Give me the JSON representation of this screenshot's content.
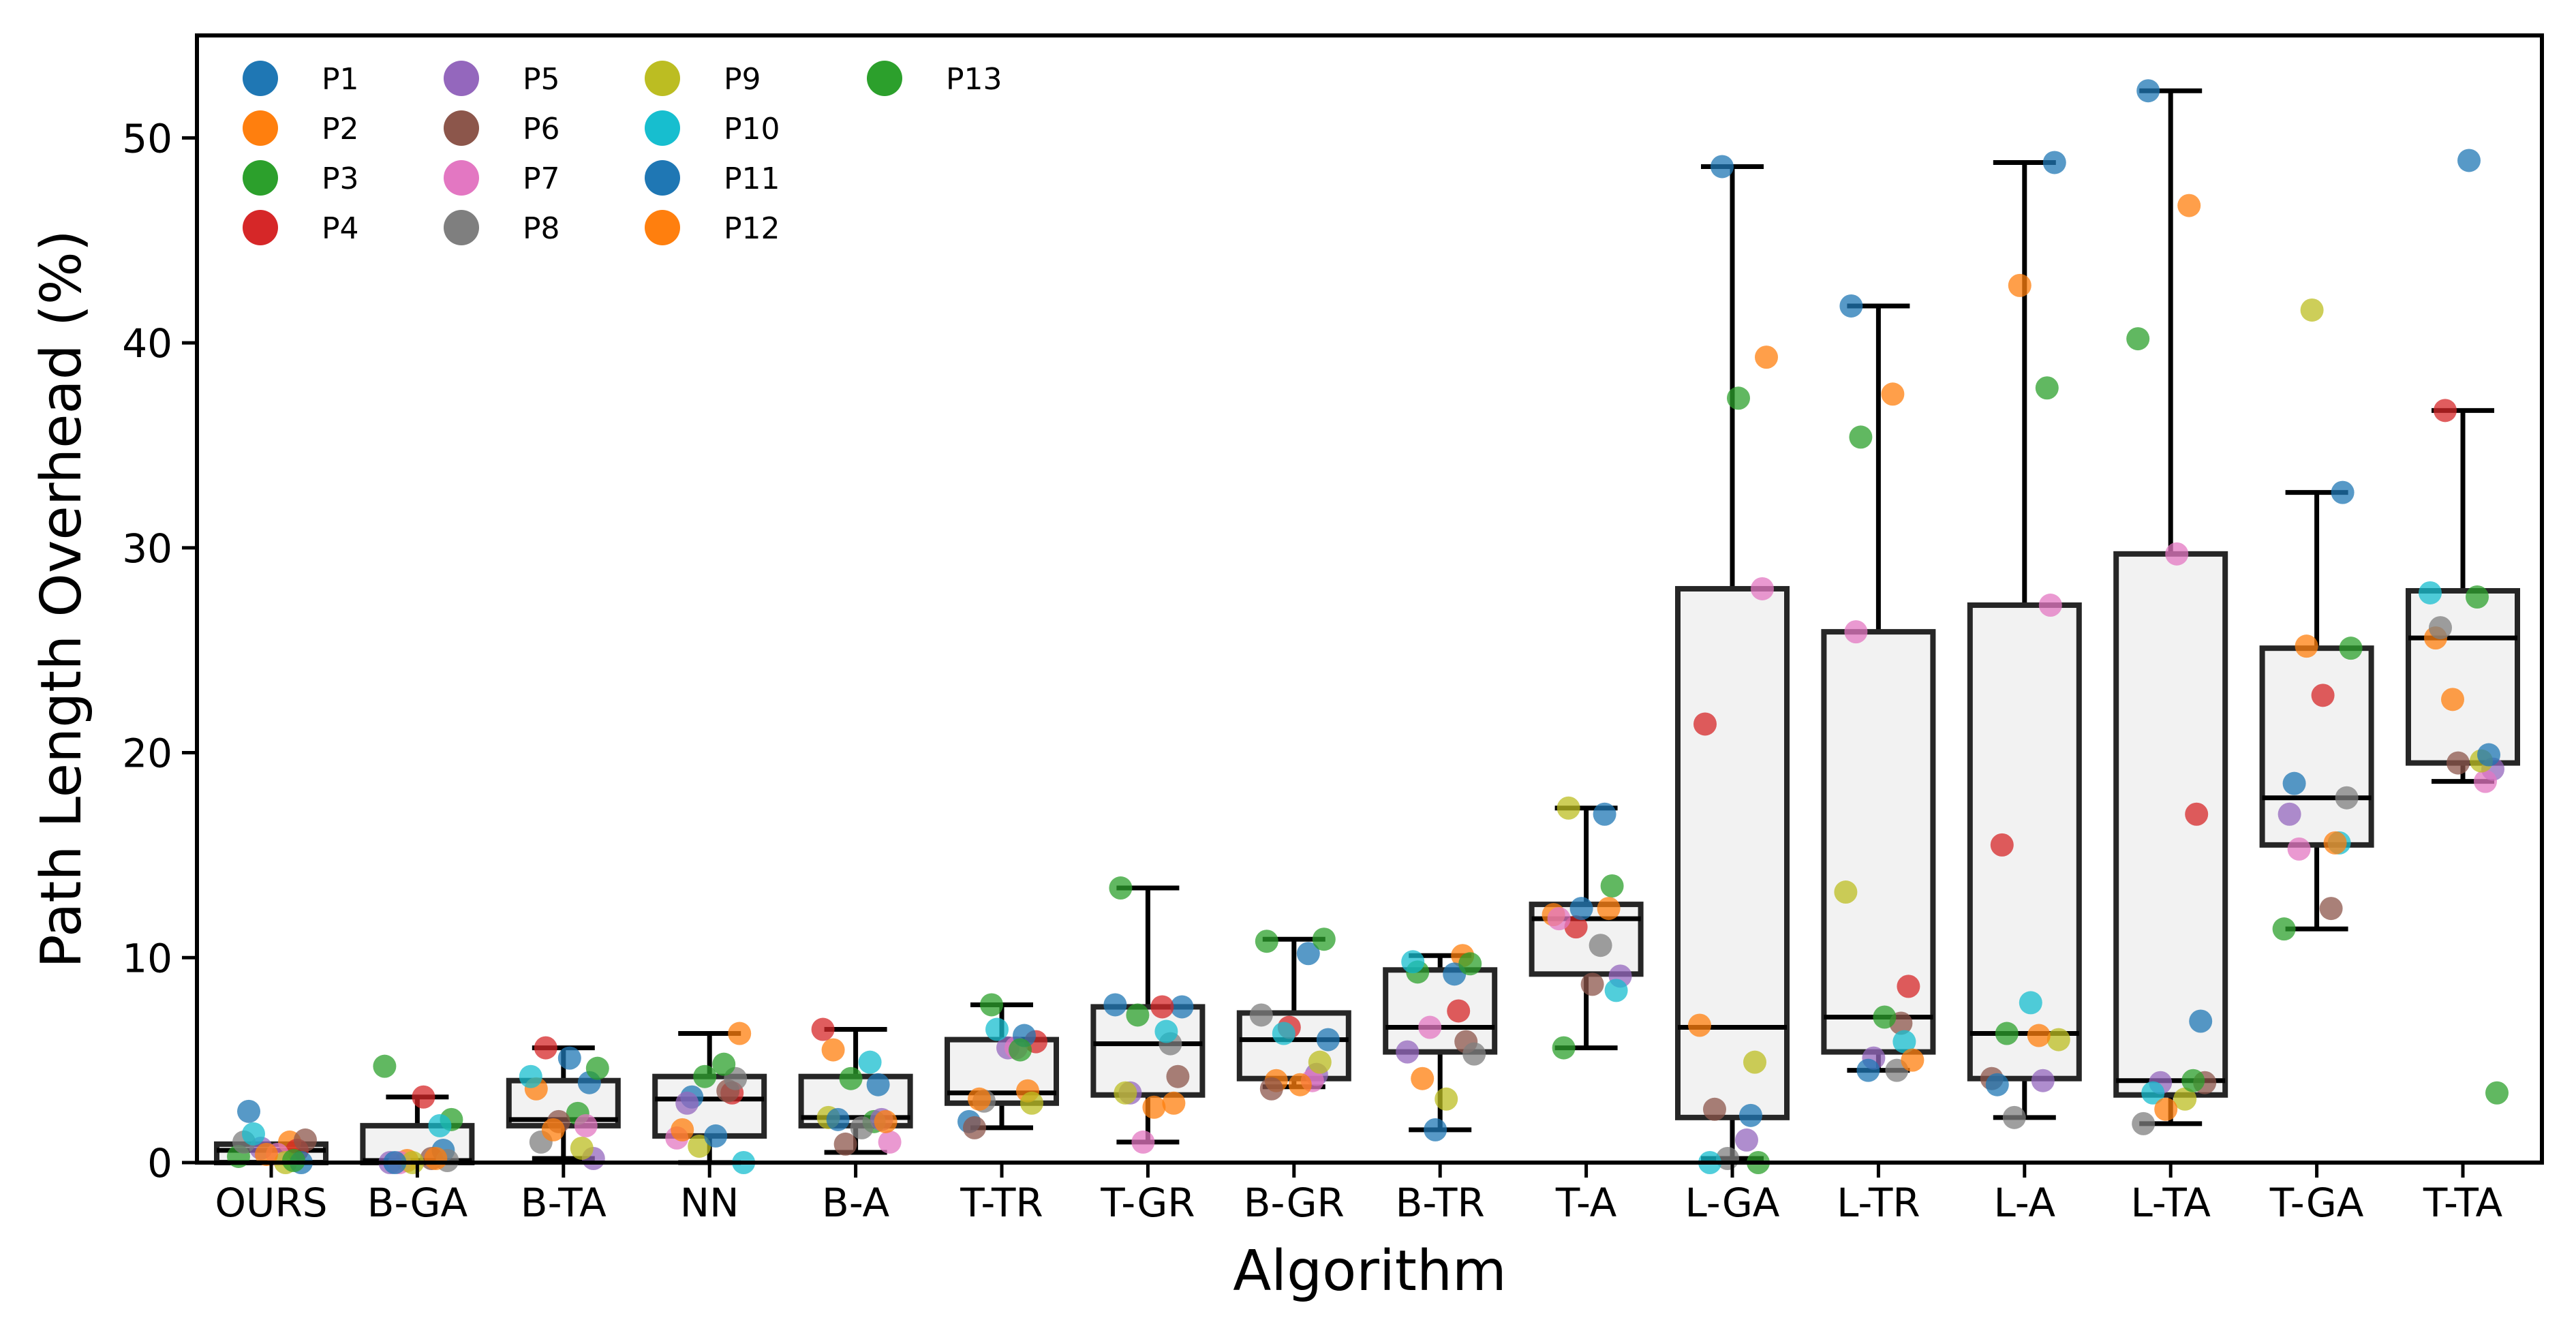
{
  "chart_data": {
    "type": "box",
    "xlabel": "Algorithm",
    "ylabel": "Path Length Overhead (%)",
    "ylim": [
      0,
      55
    ],
    "yticks": [
      0,
      10,
      20,
      30,
      40,
      50
    ],
    "ytick_labels": [
      "0",
      "10",
      "20",
      "30",
      "40",
      "50"
    ],
    "grid": false,
    "legend_placement": "top-left",
    "legend": [
      {
        "name": "P1",
        "color": "#1f77b4"
      },
      {
        "name": "P2",
        "color": "#ff7f0e"
      },
      {
        "name": "P3",
        "color": "#2ca02c"
      },
      {
        "name": "P4",
        "color": "#d62728"
      },
      {
        "name": "P5",
        "color": "#9467bd"
      },
      {
        "name": "P6",
        "color": "#8c564b"
      },
      {
        "name": "P7",
        "color": "#e377c2"
      },
      {
        "name": "P8",
        "color": "#7f7f7f"
      },
      {
        "name": "P9",
        "color": "#bcbd22"
      },
      {
        "name": "P10",
        "color": "#17becf"
      },
      {
        "name": "P11",
        "color": "#1f77b4"
      },
      {
        "name": "P12",
        "color": "#ff7f0e"
      },
      {
        "name": "P13",
        "color": "#2ca02c"
      }
    ],
    "categories": [
      "OURS",
      "B-GA",
      "B-TA",
      "NN",
      "B-A",
      "T-TR",
      "T-GR",
      "B-GR",
      "B-TR",
      "T-A",
      "L-GA",
      "L-TR",
      "L-A",
      "L-TA",
      "T-GA",
      "T-TA"
    ],
    "boxes": [
      {
        "q1": 0.0,
        "median": 0.6,
        "q3": 0.9,
        "whisker_low": 0.0,
        "whisker_high": 0.9
      },
      {
        "q1": 0.0,
        "median": 0.1,
        "q3": 1.8,
        "whisker_low": 0.0,
        "whisker_high": 3.2
      },
      {
        "q1": 1.8,
        "median": 2.1,
        "q3": 4.0,
        "whisker_low": 0.2,
        "whisker_high": 5.6
      },
      {
        "q1": 1.3,
        "median": 3.1,
        "q3": 4.2,
        "whisker_low": 0.0,
        "whisker_high": 6.3
      },
      {
        "q1": 1.8,
        "median": 2.2,
        "q3": 4.2,
        "whisker_low": 0.5,
        "whisker_high": 6.5
      },
      {
        "q1": 2.9,
        "median": 3.4,
        "q3": 6.0,
        "whisker_low": 1.7,
        "whisker_high": 7.7
      },
      {
        "q1": 3.3,
        "median": 5.8,
        "q3": 7.6,
        "whisker_low": 1.0,
        "whisker_high": 13.4
      },
      {
        "q1": 4.1,
        "median": 6.0,
        "q3": 7.3,
        "whisker_low": 3.7,
        "whisker_high": 10.9
      },
      {
        "q1": 5.4,
        "median": 6.6,
        "q3": 9.4,
        "whisker_low": 1.6,
        "whisker_high": 10.1
      },
      {
        "q1": 9.2,
        "median": 11.9,
        "q3": 12.6,
        "whisker_low": 5.6,
        "whisker_high": 17.3
      },
      {
        "q1": 2.2,
        "median": 6.6,
        "q3": 28.0,
        "whisker_low": 0.2,
        "whisker_high": 48.6
      },
      {
        "q1": 5.4,
        "median": 7.1,
        "q3": 25.9,
        "whisker_low": 4.5,
        "whisker_high": 41.8
      },
      {
        "q1": 4.1,
        "median": 6.3,
        "q3": 27.2,
        "whisker_low": 2.2,
        "whisker_high": 48.8
      },
      {
        "q1": 3.3,
        "median": 4.0,
        "q3": 29.7,
        "whisker_low": 1.9,
        "whisker_high": 52.3
      },
      {
        "q1": 15.5,
        "median": 17.8,
        "q3": 25.1,
        "whisker_low": 11.4,
        "whisker_high": 32.7
      },
      {
        "q1": 19.5,
        "median": 25.6,
        "q3": 27.9,
        "whisker_low": 18.6,
        "whisker_high": 36.7
      }
    ],
    "series": [
      {
        "name": "P1",
        "values": [
          2.5,
          0.6,
          5.1,
          3.2,
          3.8,
          2.0,
          7.6,
          10.2,
          1.6,
          17.0,
          48.6,
          41.8,
          48.8,
          52.3,
          32.7,
          48.9
        ]
      },
      {
        "name": "P2",
        "values": [
          1.0,
          0.1,
          3.6,
          6.3,
          5.5,
          3.5,
          2.7,
          4.0,
          10.1,
          12.1,
          39.3,
          37.5,
          42.8,
          46.7,
          25.2,
          25.6
        ]
      },
      {
        "name": "P3",
        "values": [
          0.3,
          2.1,
          2.4,
          4.2,
          2.0,
          7.7,
          13.4,
          10.9,
          9.3,
          13.5,
          37.3,
          35.4,
          37.8,
          40.2,
          25.1,
          27.6
        ]
      },
      {
        "name": "P4",
        "values": [
          0.6,
          3.2,
          5.6,
          3.4,
          6.5,
          5.9,
          7.6,
          6.6,
          7.4,
          11.5,
          21.4,
          8.6,
          15.5,
          17.0,
          22.8,
          36.7
        ]
      },
      {
        "name": "P5",
        "values": [
          0.7,
          0.0,
          0.2,
          2.9,
          2.1,
          5.6,
          3.4,
          4.3,
          5.4,
          9.1,
          1.1,
          5.1,
          4.0,
          3.9,
          17.0,
          19.2
        ]
      },
      {
        "name": "P6",
        "values": [
          1.1,
          0.2,
          2.0,
          3.5,
          0.9,
          1.7,
          4.2,
          3.6,
          5.9,
          8.7,
          2.6,
          6.8,
          4.1,
          3.9,
          12.4,
          19.5
        ]
      },
      {
        "name": "P7",
        "values": [
          0.4,
          0.0,
          1.8,
          1.2,
          1.0,
          5.6,
          1.0,
          4.0,
          6.6,
          11.9,
          28.0,
          25.9,
          27.2,
          29.7,
          15.3,
          18.6
        ]
      },
      {
        "name": "P8",
        "values": [
          1.0,
          0.1,
          1.0,
          4.1,
          1.7,
          3.0,
          5.8,
          7.2,
          5.3,
          10.6,
          0.2,
          4.5,
          2.2,
          1.9,
          17.8,
          26.1
        ]
      },
      {
        "name": "P9",
        "values": [
          0.0,
          0.0,
          0.7,
          0.8,
          2.2,
          2.9,
          3.4,
          4.9,
          3.1,
          17.3,
          4.9,
          13.2,
          6.0,
          3.1,
          41.6,
          19.6
        ]
      },
      {
        "name": "P10",
        "values": [
          1.4,
          1.8,
          4.2,
          0.0,
          4.9,
          6.5,
          6.4,
          6.3,
          9.8,
          8.4,
          0.0,
          5.9,
          7.8,
          3.4,
          15.6,
          27.8
        ]
      },
      {
        "name": "P11",
        "values": [
          0.0,
          0.0,
          3.9,
          1.3,
          2.1,
          6.2,
          7.7,
          6.0,
          9.2,
          12.4,
          2.3,
          4.5,
          3.8,
          6.9,
          18.5,
          19.9
        ]
      },
      {
        "name": "P12",
        "values": [
          0.4,
          0.2,
          1.6,
          1.6,
          2.0,
          3.1,
          2.9,
          3.8,
          4.1,
          12.4,
          6.7,
          5.0,
          6.2,
          2.6,
          15.6,
          22.6
        ]
      },
      {
        "name": "P13",
        "values": [
          0.1,
          4.7,
          4.6,
          4.8,
          4.1,
          5.5,
          7.2,
          10.8,
          9.7,
          5.6,
          0.0,
          7.1,
          6.3,
          4.0,
          11.4,
          3.4
        ]
      }
    ]
  }
}
